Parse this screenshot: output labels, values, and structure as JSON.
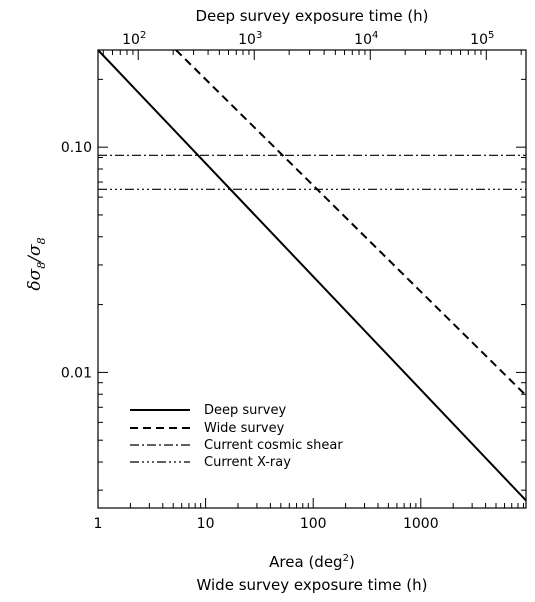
{
  "chart_data": {
    "type": "line",
    "x_scale": "log",
    "y_scale": "log",
    "xlim": [
      1,
      9500
    ],
    "ylim": [
      0.0025,
      0.27
    ],
    "top_axis": {
      "label": "Deep survey exposure time (h)",
      "range": [
        45,
        220000
      ],
      "ticks": [
        {
          "value": 100,
          "base": "10",
          "exp": "2"
        },
        {
          "value": 1000,
          "base": "10",
          "exp": "3"
        },
        {
          "value": 10000,
          "base": "10",
          "exp": "4"
        },
        {
          "value": 100000,
          "base": "10",
          "exp": "5"
        }
      ]
    },
    "xlabel": {
      "prefix": "Area (deg",
      "sup": "2",
      "suffix": ")"
    },
    "xlabel2": "Wide survey exposure time (h)",
    "x_ticks": [
      {
        "value": 1,
        "label": "1"
      },
      {
        "value": 10,
        "label": "10"
      },
      {
        "value": 100,
        "label": "100"
      },
      {
        "value": 1000,
        "label": "1000"
      }
    ],
    "y_ticks": [
      {
        "value": 0.01,
        "label": "0.01"
      },
      {
        "value": 0.1,
        "label": "0.10"
      }
    ],
    "ylabel": {
      "d": "δσ",
      "sub1": "8",
      "slash": "/σ",
      "sub2": "8"
    },
    "grid": false,
    "legend_position": "bottom-left",
    "series": [
      {
        "name": "Deep survey",
        "style": "solid",
        "x": [
          1,
          9500
        ],
        "y": [
          0.27,
          0.0027
        ]
      },
      {
        "name": "Wide survey",
        "style": "dashed",
        "x": [
          5.3,
          9500
        ],
        "y": [
          0.27,
          0.0079
        ]
      },
      {
        "name": "Current cosmic shear",
        "style": "dashdot",
        "x": [
          1,
          9500
        ],
        "y": [
          0.092,
          0.092
        ]
      },
      {
        "name": "Current X-ray",
        "style": "dashdotdotdot",
        "x": [
          1,
          9500
        ],
        "y": [
          0.065,
          0.065
        ]
      }
    ]
  }
}
